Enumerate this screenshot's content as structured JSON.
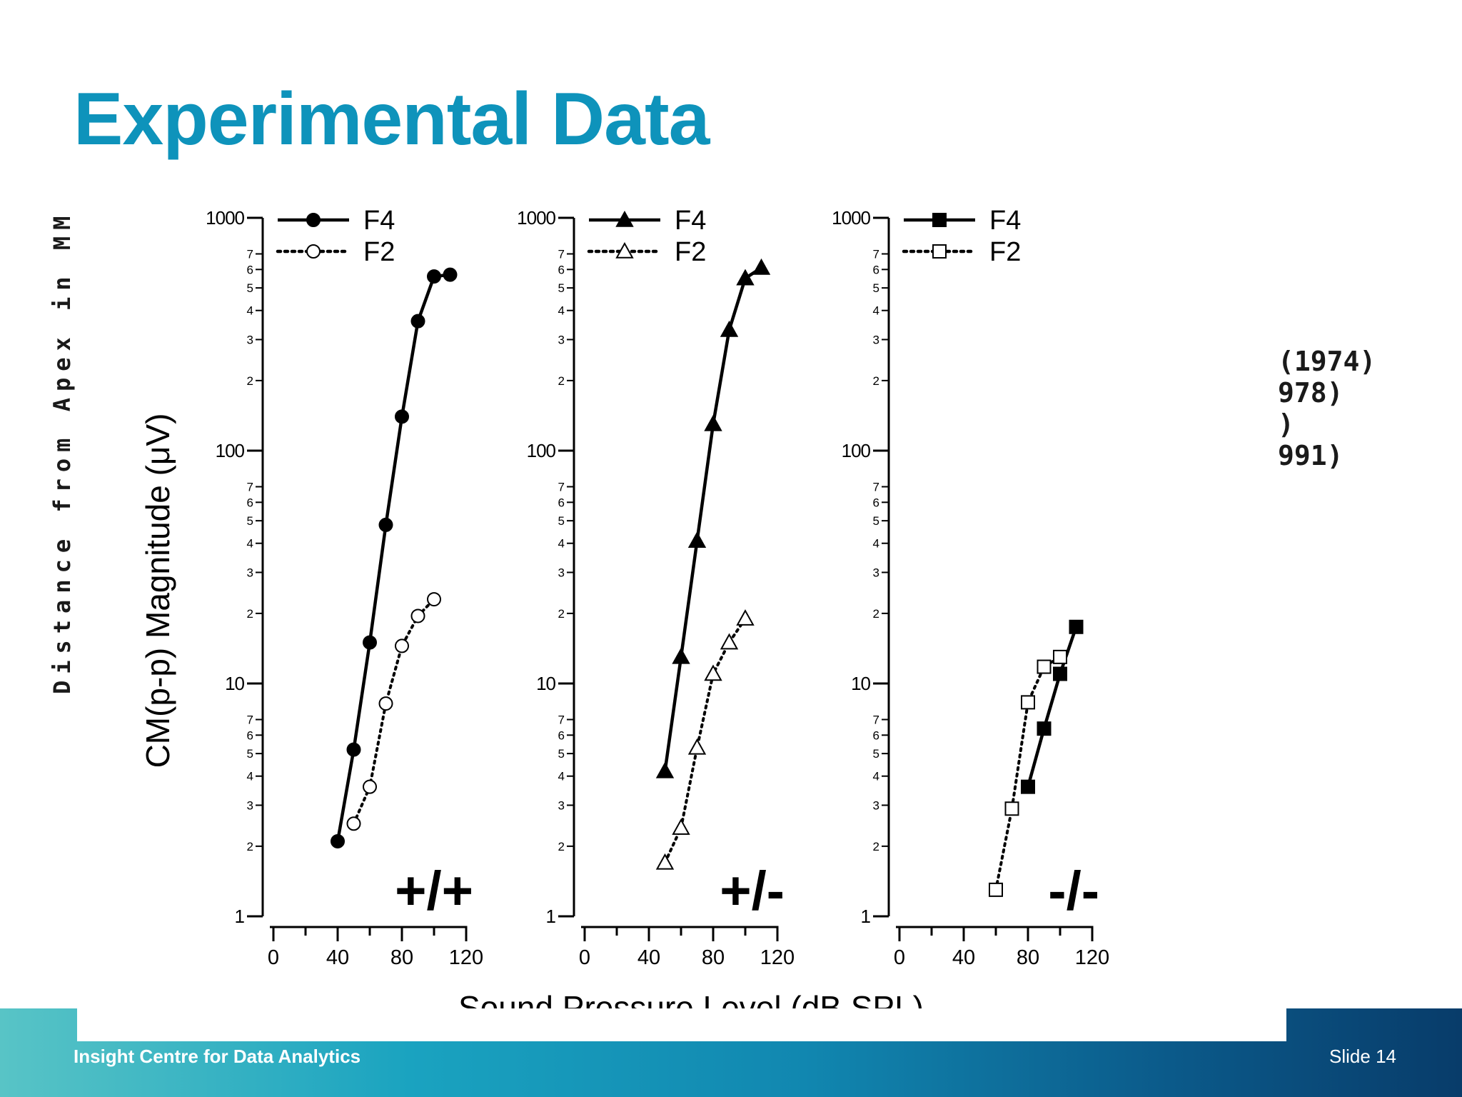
{
  "slide": {
    "title": "Experimental Data",
    "side_label": "Distance from Apex in MM",
    "refs": [
      "(1974)",
      "978)",
      ")",
      "991)"
    ],
    "footer_org": "Insight Centre for Data Analytics",
    "slide_number": "Slide 14"
  },
  "colors": {
    "title": "#0e93bb",
    "marks": "#000000"
  },
  "chart_data": {
    "type": "line",
    "ylabel": "CM(p-p) Magnitude (μV)",
    "xlabel": "Sound Pressure Level (dB SPL)",
    "yscale": "log",
    "ylim": [
      1,
      1000
    ],
    "xlim": [
      0,
      120
    ],
    "x_ticks": [
      0,
      40,
      80,
      120
    ],
    "y_major_ticks": [
      1,
      10,
      100,
      1000
    ],
    "y_major_labels": [
      "1",
      "10",
      "100",
      "1000"
    ],
    "y_minor_labels": [
      "2",
      "3",
      "4",
      "5",
      "6",
      "7"
    ],
    "grid": false,
    "legend_position": "top-left",
    "panels": [
      {
        "label": "+/+",
        "marker": "circle",
        "series": [
          {
            "name": "F4",
            "style": "solid",
            "filled": true,
            "x": [
              40,
              50,
              60,
              70,
              80,
              90,
              100,
              110
            ],
            "y": [
              2.1,
              5.2,
              15,
              48,
              140,
              360,
              560,
              570
            ]
          },
          {
            "name": "F2",
            "style": "dotted",
            "filled": false,
            "x": [
              50,
              60,
              70,
              80,
              90,
              100
            ],
            "y": [
              2.5,
              3.6,
              8.2,
              14.5,
              19.5,
              23
            ]
          }
        ]
      },
      {
        "label": "+/-",
        "marker": "triangle",
        "series": [
          {
            "name": "F4",
            "style": "solid",
            "filled": true,
            "x": [
              50,
              60,
              70,
              80,
              90,
              100,
              110
            ],
            "y": [
              4.2,
              13,
              41,
              130,
              330,
              550,
              610
            ]
          },
          {
            "name": "F2",
            "style": "dotted",
            "filled": false,
            "x": [
              50,
              60,
              70,
              80,
              90,
              100
            ],
            "y": [
              1.7,
              2.4,
              5.3,
              11,
              15,
              19
            ]
          }
        ]
      },
      {
        "label": "-/-",
        "marker": "square",
        "series": [
          {
            "name": "F4",
            "style": "solid",
            "filled": true,
            "x": [
              80,
              90,
              100,
              110
            ],
            "y": [
              3.6,
              6.4,
              11,
              17.5
            ]
          },
          {
            "name": "F2",
            "style": "dotted",
            "filled": false,
            "x": [
              60,
              70,
              80,
              90,
              100
            ],
            "y": [
              1.3,
              2.9,
              8.3,
              11.8,
              13
            ]
          }
        ]
      }
    ]
  }
}
